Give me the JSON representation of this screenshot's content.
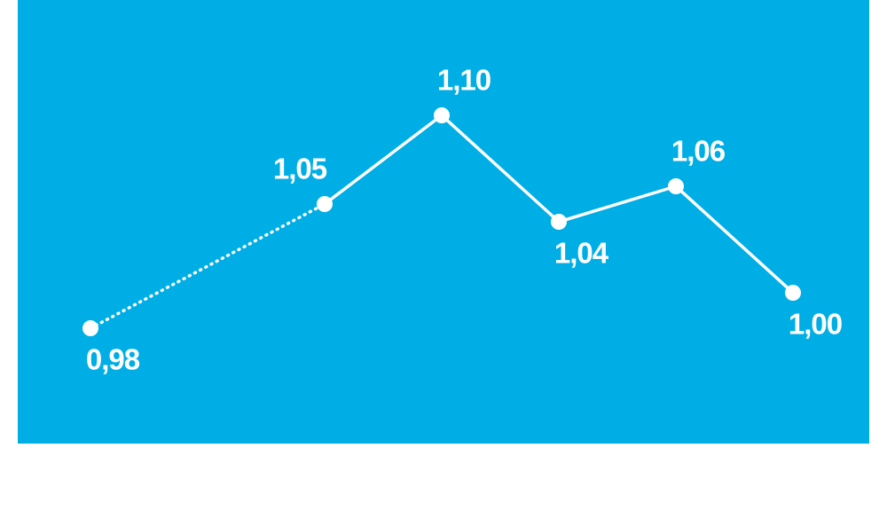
{
  "chart_data": {
    "type": "line",
    "categories": [
      null,
      null,
      null,
      null,
      null,
      null,
      null
    ],
    "values": [
      0.98,
      null,
      1.05,
      1.1,
      1.04,
      1.06,
      1.0
    ],
    "value_labels": [
      "0,98",
      null,
      "1,05",
      "1,10",
      "1,04",
      "1,06",
      "1,00"
    ],
    "color": "#ffffff",
    "background": "#00aee6",
    "gap_style": "dotted"
  }
}
